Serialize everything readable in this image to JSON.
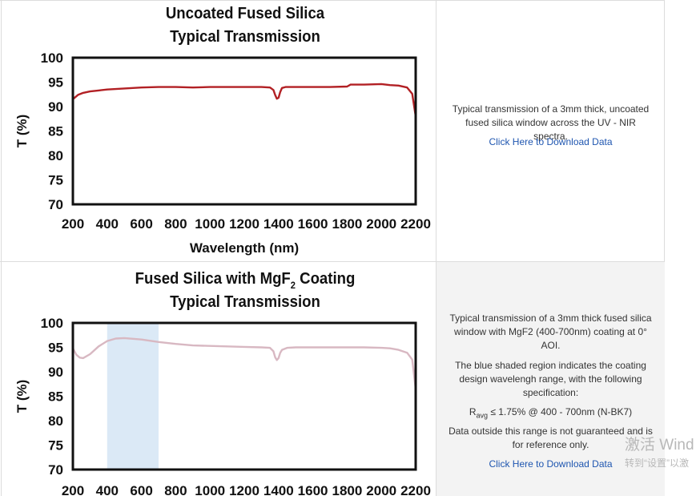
{
  "chart_data": [
    {
      "type": "line",
      "title_lines": [
        "Uncoated Fused Silica",
        "Typical Transmission"
      ],
      "xlabel": "Wavelength (nm)",
      "ylabel": "T (%)",
      "xlim": [
        200,
        2200
      ],
      "ylim": [
        70,
        100
      ],
      "xticks": [
        "200",
        "400",
        "600",
        "800",
        "1000",
        "1200",
        "1400",
        "1600",
        "1800",
        "2000",
        "2200"
      ],
      "yticks": [
        "100",
        "95",
        "90",
        "85",
        "80",
        "75",
        "70"
      ],
      "grid": false,
      "series": [
        {
          "color": "#b22024",
          "x": [
            200,
            230,
            260,
            300,
            350,
            400,
            500,
            600,
            700,
            800,
            900,
            1000,
            1100,
            1200,
            1300,
            1350,
            1370,
            1380,
            1390,
            1400,
            1410,
            1420,
            1440,
            1500,
            1600,
            1700,
            1800,
            1820,
            1900,
            2000,
            2050,
            2100,
            2150,
            2180,
            2200
          ],
          "y": [
            91.5,
            92.4,
            92.8,
            93.1,
            93.3,
            93.5,
            93.7,
            93.9,
            94.0,
            94.0,
            93.9,
            94.0,
            94.0,
            94.0,
            94.0,
            93.9,
            93.4,
            92.4,
            91.6,
            91.8,
            93.0,
            93.8,
            94.0,
            94.0,
            94.0,
            94.0,
            94.1,
            94.5,
            94.5,
            94.6,
            94.4,
            94.3,
            93.9,
            92.6,
            88.0
          ]
        }
      ]
    },
    {
      "type": "line",
      "title_main": "Fused Silica with MgF",
      "title_sub": "2",
      "title_after": " Coating",
      "title_line2": "Typical Transmission",
      "ylabel": "T (%)",
      "xlim": [
        200,
        2200
      ],
      "ylim": [
        70,
        100
      ],
      "xticks": [
        "200",
        "400",
        "600",
        "800",
        "1000",
        "1200",
        "1400",
        "1600",
        "1800",
        "2000",
        "2200"
      ],
      "yticks": [
        "100",
        "95",
        "90",
        "85",
        "80",
        "75",
        "70"
      ],
      "grid": false,
      "shaded_region": {
        "x": [
          400,
          700
        ],
        "color": "#dbe9f6"
      },
      "series": [
        {
          "color": "#d8b8c2",
          "x": [
            200,
            220,
            240,
            260,
            300,
            350,
            400,
            450,
            500,
            600,
            700,
            800,
            900,
            1000,
            1100,
            1200,
            1300,
            1350,
            1370,
            1380,
            1390,
            1400,
            1410,
            1420,
            1450,
            1500,
            1600,
            1700,
            1800,
            1900,
            2000,
            2050,
            2100,
            2150,
            2180,
            2200
          ],
          "y": [
            94.8,
            93.5,
            92.9,
            92.8,
            93.6,
            95.2,
            96.3,
            96.8,
            96.9,
            96.6,
            96.1,
            95.7,
            95.4,
            95.3,
            95.2,
            95.1,
            95.0,
            94.9,
            94.2,
            93.0,
            92.4,
            92.8,
            93.9,
            94.5,
            94.9,
            95.0,
            95.0,
            95.0,
            95.0,
            95.0,
            94.9,
            94.8,
            94.5,
            93.9,
            92.5,
            86.5
          ]
        }
      ]
    }
  ],
  "panels": {
    "top": {
      "description": "Typical transmission of a 3mm thick, uncoated fused silica window across the UV - NIR spectra.",
      "download_link": "Click Here to Download Data"
    },
    "bottom": {
      "description_1": "Typical transmission of a 3mm thick fused silica window with MgF2 (400-700nm) coating at 0° AOI.",
      "description_2": "The blue shaded region indicates the coating design wavelengh range, with the following specification:",
      "spec_prefix": "R",
      "spec_subscript": "avg",
      "spec_text": " ≤ 1.75% @ 400 - 700nm (N-BK7)",
      "description_3": "Data outside this range is not guaranteed and is for reference only.",
      "download_link": "Click Here to Download Data"
    }
  },
  "watermark": {
    "line1": "激活 Wind",
    "line2": "转到“设置”以激"
  }
}
